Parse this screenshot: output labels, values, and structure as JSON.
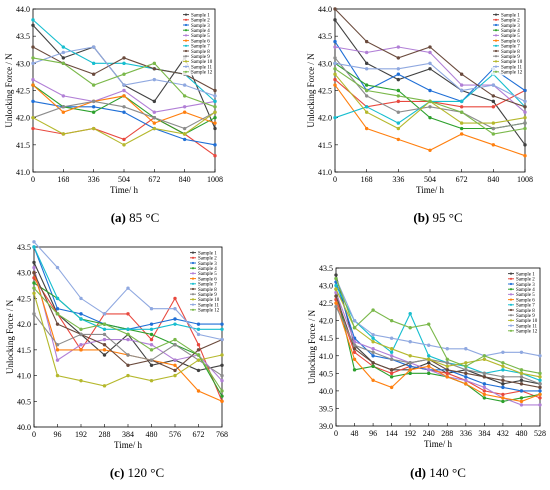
{
  "panels": [
    {
      "id": "a",
      "caption_label": "(a)",
      "caption_text": "85 °C",
      "chart_data": {
        "type": "line",
        "xlabel": "Time/ h",
        "ylabel": "Unlocking Force / N",
        "x": [
          0,
          168,
          336,
          504,
          672,
          840,
          1008
        ],
        "xticks": [
          "0",
          "168",
          "336",
          "504",
          "672",
          "840",
          "1008"
        ],
        "ylim": [
          41.0,
          44.0
        ],
        "yticks": [
          "41.0",
          "41.5",
          "42.0",
          "42.5",
          "43.0",
          "43.5",
          "44.0"
        ],
        "grid": false,
        "legend": "top-right",
        "series": [
          {
            "name": "Sample 1",
            "color": "#404040",
            "values": [
              43.7,
              43.1,
              43.3,
              42.6,
              42.3,
              43.1,
              41.8
            ]
          },
          {
            "name": "Sample 2",
            "color": "#e8483e",
            "values": [
              41.8,
              41.7,
              41.8,
              41.6,
              42.0,
              41.7,
              41.3
            ]
          },
          {
            "name": "Sample 3",
            "color": "#1f6fd6",
            "values": [
              42.3,
              42.2,
              42.2,
              42.1,
              41.8,
              41.6,
              41.5
            ]
          },
          {
            "name": "Sample 4",
            "color": "#2ca02c",
            "values": [
              42.6,
              42.2,
              42.1,
              42.4,
              42.0,
              41.7,
              42.0
            ]
          },
          {
            "name": "Sample 5",
            "color": "#b17fd6",
            "values": [
              42.7,
              42.4,
              42.3,
              42.5,
              42.1,
              42.2,
              42.3
            ]
          },
          {
            "name": "Sample 6",
            "color": "#ff7f0e",
            "values": [
              42.6,
              42.1,
              42.3,
              42.4,
              41.9,
              42.1,
              41.9
            ]
          },
          {
            "name": "Sample 7",
            "color": "#17becf",
            "values": [
              43.8,
              43.3,
              43.0,
              43.0,
              42.9,
              42.8,
              42.3
            ]
          },
          {
            "name": "Sample 8",
            "color": "#6a4a3c",
            "values": [
              43.3,
              43.0,
              42.8,
              43.1,
              42.9,
              42.8,
              42.5
            ]
          },
          {
            "name": "Sample 9",
            "color": "#8c8c8c",
            "values": [
              42.0,
              42.2,
              42.3,
              42.2,
              42.0,
              41.8,
              42.1
            ]
          },
          {
            "name": "Sample 10",
            "color": "#b5b82c",
            "values": [
              42.0,
              41.7,
              41.8,
              41.5,
              41.8,
              41.7,
              42.1
            ]
          },
          {
            "name": "Sample 11",
            "color": "#8fa8e0",
            "values": [
              43.0,
              43.2,
              43.3,
              42.6,
              42.7,
              42.6,
              42.4
            ]
          },
          {
            "name": "Sample 12",
            "color": "#7ab84a",
            "values": [
              43.1,
              43.0,
              42.6,
              42.8,
              43.0,
              42.4,
              42.2
            ]
          }
        ]
      }
    },
    {
      "id": "b",
      "caption_label": "(b)",
      "caption_text": "95 °C",
      "chart_data": {
        "type": "line",
        "xlabel": "Time/ h",
        "ylabel": "Unlocking Force / N",
        "x": [
          0,
          168,
          336,
          504,
          672,
          840,
          1008
        ],
        "xticks": [
          "0",
          "168",
          "336",
          "504",
          "672",
          "840",
          "1008"
        ],
        "ylim": [
          41.0,
          44.0
        ],
        "yticks": [
          "41.0",
          "41.5",
          "42.0",
          "42.5",
          "43.0",
          "43.5",
          "44.0"
        ],
        "grid": false,
        "legend": "top-right",
        "series": [
          {
            "name": "Sample 1",
            "color": "#404040",
            "values": [
              43.8,
              43.0,
              42.7,
              42.9,
              42.5,
              42.3,
              41.5
            ]
          },
          {
            "name": "Sample 2",
            "color": "#e8483e",
            "values": [
              42.7,
              42.2,
              42.3,
              42.3,
              42.2,
              42.2,
              42.5
            ]
          },
          {
            "name": "Sample 3",
            "color": "#1f6fd6",
            "values": [
              43.4,
              42.5,
              42.8,
              42.5,
              42.3,
              42.9,
              42.5
            ]
          },
          {
            "name": "Sample 4",
            "color": "#2ca02c",
            "values": [
              43.0,
              42.6,
              42.5,
              42.0,
              41.8,
              41.8,
              41.9
            ]
          },
          {
            "name": "Sample 5",
            "color": "#b17fd6",
            "values": [
              43.3,
              43.2,
              43.3,
              43.2,
              42.6,
              42.6,
              42.1
            ]
          },
          {
            "name": "Sample 6",
            "color": "#ff7f0e",
            "values": [
              42.6,
              41.8,
              41.6,
              41.4,
              41.7,
              41.5,
              41.3
            ]
          },
          {
            "name": "Sample 7",
            "color": "#17becf",
            "values": [
              42.0,
              42.2,
              41.9,
              42.3,
              42.3,
              42.8,
              42.2
            ]
          },
          {
            "name": "Sample 8",
            "color": "#6a4a3c",
            "values": [
              44.0,
              43.4,
              43.1,
              43.3,
              42.8,
              42.4,
              42.2
            ]
          },
          {
            "name": "Sample 9",
            "color": "#8c8c8c",
            "values": [
              43.1,
              42.4,
              42.1,
              42.2,
              42.1,
              41.8,
              41.9
            ]
          },
          {
            "name": "Sample 10",
            "color": "#b5b82c",
            "values": [
              42.8,
              42.1,
              41.8,
              42.3,
              41.9,
              41.9,
              42.0
            ]
          },
          {
            "name": "Sample 11",
            "color": "#8fa8e0",
            "values": [
              43.0,
              42.9,
              42.9,
              43.0,
              42.5,
              42.6,
              42.3
            ]
          },
          {
            "name": "Sample 12",
            "color": "#7ab84a",
            "values": [
              42.9,
              42.5,
              42.4,
              42.3,
              42.1,
              41.7,
              41.8
            ]
          }
        ]
      }
    },
    {
      "id": "c",
      "caption_label": "(c)",
      "caption_text": "120 °C",
      "chart_data": {
        "type": "line",
        "xlabel": "Time/ h",
        "ylabel": "Unlocking Force / N",
        "x": [
          0,
          96,
          192,
          288,
          384,
          480,
          576,
          672,
          768
        ],
        "xticks": [
          "0",
          "96",
          "192",
          "288",
          "384",
          "480",
          "576",
          "672",
          "768"
        ],
        "ylim": [
          40.0,
          43.5
        ],
        "yticks": [
          "40.0",
          "40.5",
          "41.0",
          "41.5",
          "42.0",
          "42.5",
          "43.0",
          "43.5"
        ],
        "grid": false,
        "legend": "top-right",
        "series": [
          {
            "name": "Sample 1",
            "color": "#404040",
            "values": [
              43.2,
              42.2,
              41.8,
              41.4,
              41.8,
              41.2,
              41.3,
              41.1,
              41.2
            ]
          },
          {
            "name": "Sample 2",
            "color": "#e8483e",
            "values": [
              42.9,
              42.2,
              41.5,
              42.2,
              42.2,
              41.7,
              42.5,
              41.6,
              40.5
            ]
          },
          {
            "name": "Sample 3",
            "color": "#1f6fd6",
            "values": [
              43.5,
              42.3,
              42.2,
              42.0,
              41.9,
              42.0,
              42.1,
              42.0,
              42.0
            ]
          },
          {
            "name": "Sample 4",
            "color": "#2ca02c",
            "values": [
              42.8,
              42.5,
              42.1,
              42.0,
              41.9,
              41.8,
              41.6,
              41.4,
              40.6
            ]
          },
          {
            "name": "Sample 5",
            "color": "#b17fd6",
            "values": [
              43.1,
              41.3,
              41.6,
              41.7,
              41.7,
              41.6,
              41.3,
              41.4,
              40.9
            ]
          },
          {
            "name": "Sample 6",
            "color": "#ff7f0e",
            "values": [
              43.0,
              41.5,
              41.5,
              41.5,
              41.4,
              41.3,
              41.2,
              40.7,
              40.5
            ]
          },
          {
            "name": "Sample 7",
            "color": "#17becf",
            "values": [
              43.5,
              42.5,
              42.1,
              41.9,
              41.9,
              41.9,
              42.0,
              41.9,
              41.9
            ]
          },
          {
            "name": "Sample 8",
            "color": "#6a4a3c",
            "values": [
              43.0,
              42.0,
              41.8,
              41.6,
              41.2,
              41.3,
              41.1,
              41.5,
              41.7
            ]
          },
          {
            "name": "Sample 9",
            "color": "#8c8c8c",
            "values": [
              42.2,
              41.6,
              41.8,
              41.8,
              41.4,
              41.3,
              41.6,
              41.3,
              41.0
            ]
          },
          {
            "name": "Sample 10",
            "color": "#b5b82c",
            "values": [
              42.6,
              41.0,
              40.9,
              40.8,
              41.0,
              40.9,
              41.0,
              41.3,
              41.4
            ]
          },
          {
            "name": "Sample 11",
            "color": "#8fa8e0",
            "values": [
              43.6,
              43.1,
              42.5,
              42.2,
              42.7,
              42.3,
              42.3,
              41.8,
              41.7
            ]
          },
          {
            "name": "Sample 12",
            "color": "#7ab84a",
            "values": [
              42.7,
              42.2,
              41.9,
              42.0,
              41.8,
              41.5,
              41.7,
              41.4,
              40.7
            ]
          }
        ]
      }
    },
    {
      "id": "d",
      "caption_label": "(d)",
      "caption_text": "140 °C",
      "chart_data": {
        "type": "line",
        "xlabel": "Time/ h",
        "ylabel": "Unlocking Force / N",
        "x": [
          0,
          48,
          96,
          144,
          192,
          240,
          288,
          336,
          384,
          432,
          480,
          528
        ],
        "xticks": [
          "0",
          "48",
          "96",
          "144",
          "192",
          "240",
          "288",
          "336",
          "384",
          "432",
          "480",
          "528"
        ],
        "ylim": [
          39.0,
          43.5
        ],
        "yticks": [
          "39.0",
          "39.5",
          "40.0",
          "40.5",
          "41.0",
          "41.5",
          "42.0",
          "42.5",
          "43.0",
          "43.5"
        ],
        "grid": false,
        "legend": "top-right",
        "series": [
          {
            "name": "Sample 1",
            "color": "#404040",
            "values": [
              43.3,
              41.3,
              40.8,
              40.6,
              40.6,
              40.8,
              40.5,
              40.6,
              40.4,
              40.2,
              40.3,
              40.2
            ]
          },
          {
            "name": "Sample 2",
            "color": "#e8483e",
            "values": [
              42.6,
              41.1,
              40.7,
              40.5,
              40.7,
              40.6,
              40.5,
              40.3,
              40.0,
              39.9,
              40.0,
              39.8
            ]
          },
          {
            "name": "Sample 3",
            "color": "#1f6fd6",
            "values": [
              43.1,
              41.5,
              41.0,
              40.9,
              40.7,
              40.6,
              40.6,
              40.4,
              40.2,
              40.1,
              40.0,
              40.0
            ]
          },
          {
            "name": "Sample 4",
            "color": "#2ca02c",
            "values": [
              42.9,
              40.6,
              40.7,
              40.4,
              40.5,
              40.5,
              40.4,
              40.2,
              39.8,
              39.7,
              39.8,
              39.9
            ]
          },
          {
            "name": "Sample 5",
            "color": "#b17fd6",
            "values": [
              42.8,
              41.4,
              41.2,
              41.0,
              40.8,
              40.6,
              40.4,
              40.3,
              40.1,
              39.8,
              39.6,
              39.6
            ]
          },
          {
            "name": "Sample 6",
            "color": "#ff7f0e",
            "values": [
              42.5,
              40.9,
              40.3,
              40.1,
              40.6,
              40.7,
              40.4,
              40.2,
              39.9,
              39.8,
              39.7,
              39.9
            ]
          },
          {
            "name": "Sample 7",
            "color": "#17becf",
            "values": [
              43.0,
              42.0,
              41.5,
              41.1,
              42.2,
              41.0,
              40.8,
              40.7,
              40.5,
              40.6,
              40.5,
              40.3
            ]
          },
          {
            "name": "Sample 8",
            "color": "#6a4a3c",
            "values": [
              42.7,
              41.2,
              40.8,
              40.6,
              40.8,
              40.9,
              40.6,
              40.5,
              40.4,
              40.3,
              40.2,
              40.1
            ]
          },
          {
            "name": "Sample 9",
            "color": "#8c8c8c",
            "values": [
              42.4,
              41.3,
              41.1,
              40.9,
              40.8,
              40.9,
              40.8,
              40.6,
              40.5,
              40.4,
              40.4,
              40.2
            ]
          },
          {
            "name": "Sample 10",
            "color": "#b5b82c",
            "values": [
              42.9,
              41.8,
              41.4,
              41.2,
              41.0,
              40.9,
              40.7,
              40.8,
              40.9,
              40.7,
              40.5,
              40.4
            ]
          },
          {
            "name": "Sample 11",
            "color": "#8fa8e0",
            "values": [
              43.2,
              42.0,
              41.6,
              41.5,
              41.4,
              41.3,
              41.2,
              41.2,
              41.0,
              41.1,
              41.1,
              41.0
            ]
          },
          {
            "name": "Sample 12",
            "color": "#7ab84a",
            "values": [
              43.2,
              41.8,
              42.3,
              42.0,
              41.8,
              41.9,
              40.9,
              40.7,
              41.0,
              40.8,
              40.6,
              40.5
            ]
          }
        ]
      }
    }
  ]
}
